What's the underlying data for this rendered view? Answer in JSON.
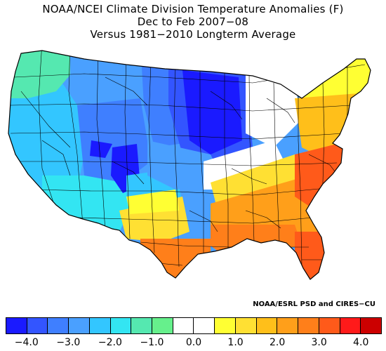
{
  "header": {
    "title_line1": "NOAA/NCEI Climate Division Temperature Anomalies (F)",
    "title_line2": "Dec to Feb 2007−08",
    "title_line3": "Versus 1981−2010 Longterm Average"
  },
  "credit": "NOAA/ESRL PSD and CIRES−CU",
  "legend": {
    "colors": [
      "#1a1aff",
      "#3355ff",
      "#3f7fff",
      "#4aa0ff",
      "#33c6ff",
      "#33e5f2",
      "#55e8b0",
      "#66f08c",
      "#ffffff",
      "#ffffff",
      "#ffff33",
      "#ffe033",
      "#ffbf1a",
      "#ff9f1a",
      "#ff7f1a",
      "#ff5a1a",
      "#ff1a1a",
      "#cc0000"
    ],
    "tick_labels": [
      "−4.0",
      "−3.0",
      "−2.0",
      "−1.0",
      "0.0",
      "1.0",
      "2.0",
      "3.0",
      "4.0"
    ],
    "tick_values": [
      -4.0,
      -3.0,
      -2.0,
      -1.0,
      0.0,
      1.0,
      2.0,
      3.0,
      4.0
    ],
    "min": -4.5,
    "max": 4.5,
    "step": 0.5
  },
  "map_regions": [
    {
      "name": "pacific-northwest",
      "color": "#55e8b0"
    },
    {
      "name": "california-great-basin",
      "color": "#33c6ff"
    },
    {
      "name": "desert-southwest",
      "color": "#33e5f2"
    },
    {
      "name": "northern-rockies",
      "color": "#4aa0ff"
    },
    {
      "name": "central-rockies",
      "color": "#3f7fff"
    },
    {
      "name": "four-corners-core",
      "color": "#1a1aff"
    },
    {
      "name": "southern-rockies",
      "color": "#33c6ff"
    },
    {
      "name": "northern-plains",
      "color": "#3f7fff"
    },
    {
      "name": "upper-midwest-core",
      "color": "#1a1aff"
    },
    {
      "name": "upper-midwest-outer",
      "color": "#3355ff"
    },
    {
      "name": "central-plains",
      "color": "#4aa0ff"
    },
    {
      "name": "great-lakes",
      "color": "#ffffff"
    },
    {
      "name": "mid-south",
      "color": "#ffffff"
    },
    {
      "name": "new-england",
      "color": "#ffff33"
    },
    {
      "name": "mid-atlantic",
      "color": "#ffbf1a"
    },
    {
      "name": "carolinas",
      "color": "#ff5a1a"
    },
    {
      "name": "southeast",
      "color": "#ff9f1a"
    },
    {
      "name": "gulf-coast",
      "color": "#ff7f1a"
    },
    {
      "name": "florida-peninsula",
      "color": "#ff5a1a"
    },
    {
      "name": "south-texas",
      "color": "#ff7f1a"
    },
    {
      "name": "texas-west",
      "color": "#ffe033"
    },
    {
      "name": "new-mexico-east",
      "color": "#ffff33"
    },
    {
      "name": "ozarks-tennessee",
      "color": "#ffe033"
    }
  ]
}
